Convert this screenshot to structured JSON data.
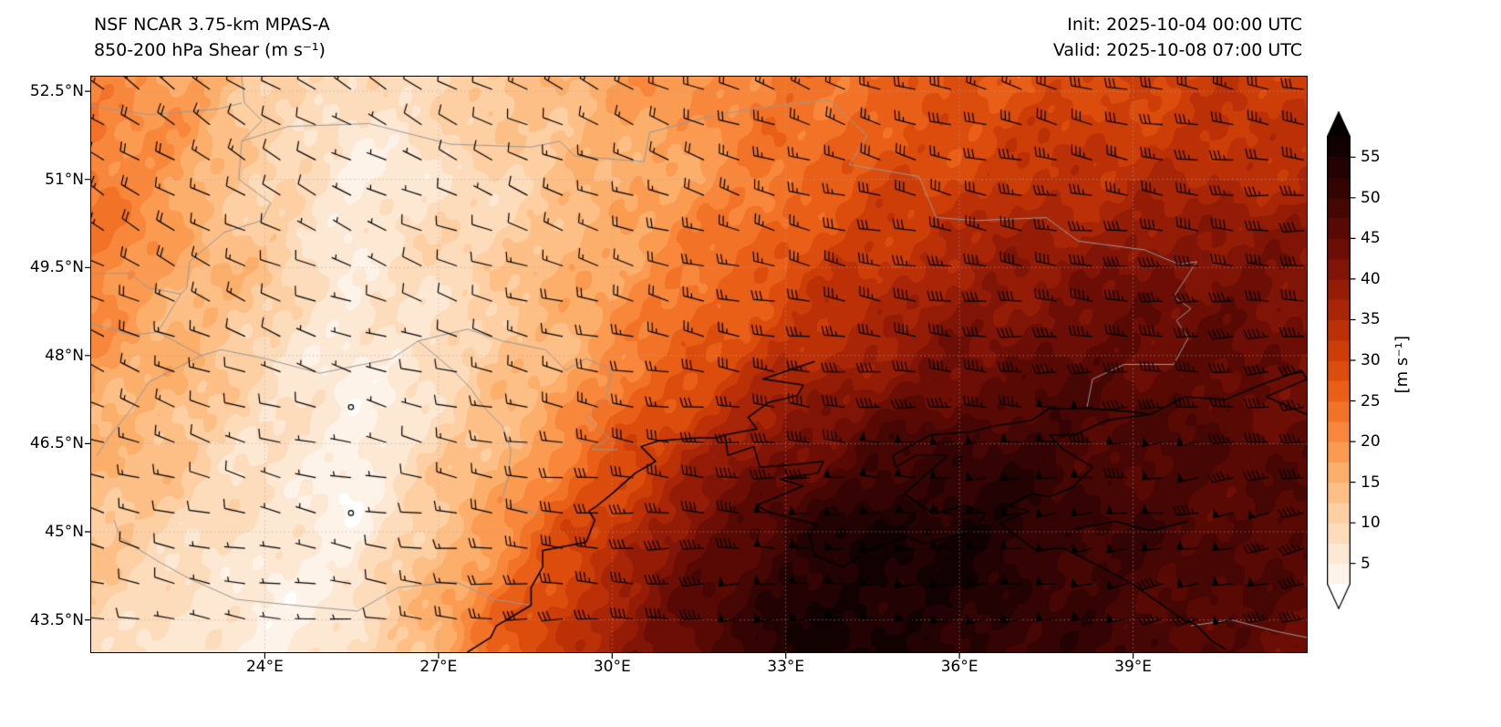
{
  "header": {
    "model": "NSF NCAR 3.75-km MPAS-A",
    "field": "850-200 hPa Shear (m s⁻¹)",
    "init": "Init: 2025-10-04 00:00 UTC",
    "valid": "Valid: 2025-10-08 07:00 UTC"
  },
  "axes": {
    "y_ticks": [
      "52.5°N",
      "51°N",
      "49.5°N",
      "48°N",
      "46.5°N",
      "45°N",
      "43.5°N"
    ],
    "y_tick_lats": [
      52.5,
      51,
      49.5,
      48,
      46.5,
      45,
      43.5
    ],
    "x_ticks": [
      "24°E",
      "27°E",
      "30°E",
      "33°E",
      "36°E",
      "39°E"
    ],
    "x_tick_lons": [
      24,
      27,
      30,
      33,
      36,
      39
    ]
  },
  "colorbar": {
    "label": "[m s⁻¹]",
    "ticks": [
      5,
      10,
      15,
      20,
      25,
      30,
      35,
      40,
      45,
      50,
      55
    ],
    "min": 2.5,
    "max": 57.5,
    "band_step": 2.5,
    "colors": [
      "#ffffff",
      "#fef3e8",
      "#fde8d4",
      "#fddcbc",
      "#fdcfa2",
      "#fdbf86",
      "#fcae6b",
      "#fb9a51",
      "#f8873b",
      "#f27327",
      "#e95f17",
      "#dc4c0c",
      "#cc3d08",
      "#bb3007",
      "#a82507",
      "#941c06",
      "#801406",
      "#6c0e05",
      "#580904",
      "#450604",
      "#330403",
      "#220202",
      "#120101"
    ],
    "over_color": "#060000",
    "under_color": "#ffffff"
  },
  "chart_data": {
    "type": "heatmap",
    "title": "NSF NCAR 3.75-km MPAS-A 850-200 hPa Shear",
    "units": "m s⁻¹",
    "extent": {
      "lon_min": 21.0,
      "lon_max": 42.0,
      "lat_min": 42.95,
      "lat_max": 52.75
    },
    "lons": [
      21,
      22.5,
      24,
      25.5,
      27,
      28.5,
      30,
      31.5,
      33,
      34.5,
      36,
      37.5,
      39,
      40.5,
      42
    ],
    "lats": [
      52.5,
      51,
      49.5,
      48,
      46.5,
      45,
      43.5
    ],
    "values": [
      [
        22,
        18,
        12,
        7,
        10,
        14,
        17,
        20,
        23,
        25,
        27,
        29,
        30,
        31,
        32
      ],
      [
        24,
        18,
        10,
        5,
        7,
        11,
        15,
        19,
        24,
        28,
        31,
        33,
        34,
        35,
        35
      ],
      [
        22,
        17,
        12,
        6,
        9,
        13,
        18,
        23,
        28,
        33,
        37,
        40,
        42,
        43,
        41
      ],
      [
        19,
        15,
        10,
        4,
        8,
        13,
        20,
        27,
        33,
        38,
        42,
        45,
        46,
        45,
        43
      ],
      [
        16,
        13,
        8,
        3,
        10,
        17,
        26,
        35,
        42,
        47,
        50,
        50,
        48,
        47,
        46
      ],
      [
        13,
        10,
        6,
        4,
        13,
        23,
        33,
        43,
        51,
        55,
        56,
        52,
        49,
        48,
        47
      ],
      [
        10,
        7,
        4,
        7,
        17,
        28,
        38,
        47,
        54,
        56,
        53,
        51,
        49,
        47,
        45
      ]
    ],
    "wind_barbs": {
      "units": "m s⁻¹",
      "spacing_px": 38.7,
      "dir_from_deg_nw": 307,
      "dir_from_deg_se": 253,
      "speed_equals_shear_field": true
    },
    "basemap": {
      "coastlines": [
        [
          [
            27.5,
            42.95
          ],
          [
            27.9,
            43.2
          ],
          [
            28.0,
            43.4
          ],
          [
            28.6,
            43.75
          ],
          [
            28.6,
            44.05
          ],
          [
            28.8,
            44.4
          ],
          [
            28.8,
            44.68
          ],
          [
            29.55,
            44.82
          ],
          [
            29.7,
            45.2
          ],
          [
            29.6,
            45.35
          ],
          [
            29.75,
            45.45
          ],
          [
            30.0,
            45.65
          ],
          [
            30.4,
            46.0
          ],
          [
            30.75,
            46.2
          ],
          [
            30.5,
            46.45
          ],
          [
            30.8,
            46.55
          ],
          [
            31.5,
            46.6
          ],
          [
            31.8,
            46.6
          ],
          [
            31.95,
            46.65
          ],
          [
            32.0,
            46.3
          ],
          [
            32.45,
            46.45
          ],
          [
            32.55,
            46.1
          ],
          [
            33.2,
            46.15
          ],
          [
            33.65,
            46.2
          ],
          [
            33.55,
            46.0
          ],
          [
            32.9,
            45.9
          ],
          [
            33.3,
            45.78
          ],
          [
            32.5,
            45.45
          ],
          [
            32.72,
            45.33
          ],
          [
            33.55,
            45.12
          ],
          [
            33.4,
            44.95
          ],
          [
            33.5,
            44.6
          ],
          [
            33.98,
            44.4
          ],
          [
            34.5,
            44.72
          ],
          [
            35.1,
            44.92
          ],
          [
            35.4,
            44.8
          ],
          [
            36.2,
            45.0
          ],
          [
            36.45,
            45.3
          ],
          [
            36.1,
            45.45
          ],
          [
            35.55,
            45.3
          ],
          [
            35.05,
            45.65
          ],
          [
            35.8,
            46.3
          ],
          [
            35.25,
            46.3
          ],
          [
            34.9,
            46.1
          ],
          [
            34.85,
            46.3
          ],
          [
            35.5,
            46.65
          ],
          [
            36.2,
            46.7
          ],
          [
            36.6,
            46.8
          ],
          [
            37.25,
            46.9
          ],
          [
            37.55,
            47.1
          ],
          [
            38.2,
            47.1
          ],
          [
            38.9,
            47.05
          ],
          [
            39.3,
            47.0
          ],
          [
            38.55,
            46.9
          ],
          [
            38.0,
            46.65
          ],
          [
            37.55,
            46.65
          ],
          [
            37.8,
            46.4
          ],
          [
            38.3,
            46.1
          ],
          [
            37.95,
            45.75
          ],
          [
            37.55,
            45.6
          ],
          [
            37.25,
            45.65
          ],
          [
            36.85,
            45.45
          ],
          [
            37.2,
            45.35
          ],
          [
            36.7,
            45.15
          ],
          [
            36.95,
            44.95
          ],
          [
            37.3,
            44.7
          ],
          [
            37.8,
            44.72
          ],
          [
            38.55,
            44.35
          ],
          [
            39.0,
            44.1
          ],
          [
            39.8,
            43.55
          ],
          [
            40.1,
            43.4
          ],
          [
            40.35,
            43.15
          ],
          [
            40.6,
            43.0
          ]
        ],
        [
          [
            33.5,
            47.9
          ],
          [
            33.05,
            47.75
          ],
          [
            32.6,
            47.6
          ],
          [
            33.3,
            47.5
          ],
          [
            33.2,
            47.32
          ],
          [
            32.7,
            47.2
          ],
          [
            32.35,
            46.95
          ],
          [
            32.5,
            46.75
          ],
          [
            31.95,
            46.65
          ]
        ],
        [
          [
            38.0,
            45.05
          ],
          [
            38.7,
            45.18
          ],
          [
            39.3,
            45.02
          ],
          [
            39.95,
            45.18
          ]
        ],
        [
          [
            39.3,
            47.0
          ],
          [
            39.9,
            47.3
          ],
          [
            40.6,
            47.25
          ],
          [
            41.2,
            47.5
          ],
          [
            41.9,
            47.75
          ],
          [
            42.0,
            47.6
          ],
          [
            41.3,
            47.3
          ],
          [
            42.0,
            47.0
          ]
        ]
      ],
      "borders": [
        [
          [
            23.6,
            52.75
          ],
          [
            23.65,
            52.3
          ],
          [
            23.95,
            52.0
          ],
          [
            23.6,
            51.65
          ],
          [
            23.55,
            51.0
          ],
          [
            24.1,
            50.6
          ],
          [
            23.95,
            50.3
          ],
          [
            23.3,
            50.1
          ],
          [
            22.7,
            49.6
          ],
          [
            22.65,
            49.15
          ],
          [
            22.55,
            49.05
          ],
          [
            22.15,
            48.4
          ],
          [
            22.9,
            48.0
          ],
          [
            23.25,
            48.1
          ],
          [
            24.0,
            47.95
          ],
          [
            24.95,
            47.7
          ],
          [
            26.2,
            47.95
          ],
          [
            26.65,
            48.25
          ]
        ],
        [
          [
            26.65,
            48.25
          ],
          [
            26.95,
            48.0
          ],
          [
            27.25,
            47.75
          ],
          [
            27.55,
            47.45
          ],
          [
            27.8,
            47.1
          ],
          [
            28.1,
            46.8
          ],
          [
            28.25,
            46.4
          ],
          [
            28.2,
            45.9
          ],
          [
            28.1,
            45.6
          ],
          [
            28.2,
            45.45
          ],
          [
            28.75,
            45.3
          ]
        ],
        [
          [
            26.65,
            48.25
          ],
          [
            27.5,
            48.45
          ],
          [
            28.1,
            48.25
          ],
          [
            28.85,
            48.1
          ],
          [
            29.2,
            47.75
          ],
          [
            29.55,
            47.95
          ],
          [
            30.0,
            47.75
          ],
          [
            29.9,
            47.3
          ],
          [
            29.55,
            46.95
          ],
          [
            29.95,
            46.6
          ],
          [
            29.65,
            46.4
          ],
          [
            30.1,
            46.4
          ]
        ],
        [
          [
            23.6,
            51.65
          ],
          [
            24.4,
            51.9
          ],
          [
            25.8,
            51.95
          ],
          [
            27.2,
            51.6
          ],
          [
            28.6,
            51.55
          ],
          [
            29.1,
            51.65
          ],
          [
            29.35,
            51.4
          ],
          [
            30.55,
            51.3
          ],
          [
            30.65,
            51.8
          ],
          [
            31.8,
            52.1
          ],
          [
            32.75,
            52.25
          ],
          [
            33.75,
            52.35
          ]
        ],
        [
          [
            33.75,
            52.35
          ],
          [
            34.4,
            51.75
          ],
          [
            34.1,
            51.25
          ],
          [
            35.3,
            51.05
          ],
          [
            35.6,
            50.35
          ],
          [
            36.3,
            50.3
          ],
          [
            37.5,
            50.35
          ],
          [
            38.05,
            49.95
          ],
          [
            39.2,
            49.8
          ],
          [
            39.8,
            49.55
          ],
          [
            40.1,
            49.6
          ],
          [
            39.7,
            49.0
          ],
          [
            40.0,
            48.8
          ],
          [
            39.75,
            48.6
          ],
          [
            39.95,
            48.3
          ],
          [
            39.7,
            47.85
          ],
          [
            38.85,
            47.85
          ],
          [
            38.3,
            47.6
          ],
          [
            38.2,
            47.1
          ]
        ],
        [
          [
            21.0,
            52.25
          ],
          [
            22.0,
            52.1
          ],
          [
            23.2,
            52.2
          ],
          [
            23.6,
            52.3
          ]
        ],
        [
          [
            21.0,
            49.4
          ],
          [
            21.65,
            49.4
          ],
          [
            22.0,
            49.15
          ],
          [
            22.55,
            49.05
          ]
        ],
        [
          [
            21.0,
            48.55
          ],
          [
            21.7,
            48.35
          ],
          [
            22.15,
            48.4
          ]
        ],
        [
          [
            21.4,
            45.2
          ],
          [
            21.5,
            44.9
          ],
          [
            22.15,
            44.5
          ],
          [
            22.7,
            44.2
          ],
          [
            23.5,
            43.85
          ],
          [
            24.5,
            43.75
          ],
          [
            25.6,
            43.65
          ],
          [
            26.3,
            44.05
          ],
          [
            27.3,
            44.15
          ],
          [
            27.95,
            43.85
          ],
          [
            28.6,
            43.75
          ]
        ],
        [
          [
            21.1,
            46.3
          ],
          [
            21.3,
            46.6
          ],
          [
            21.7,
            47.1
          ],
          [
            22.0,
            47.55
          ],
          [
            22.9,
            48.0
          ]
        ],
        [
          [
            40.0,
            43.4
          ],
          [
            40.7,
            43.5
          ],
          [
            41.5,
            43.3
          ],
          [
            42.0,
            43.2
          ]
        ]
      ]
    }
  }
}
